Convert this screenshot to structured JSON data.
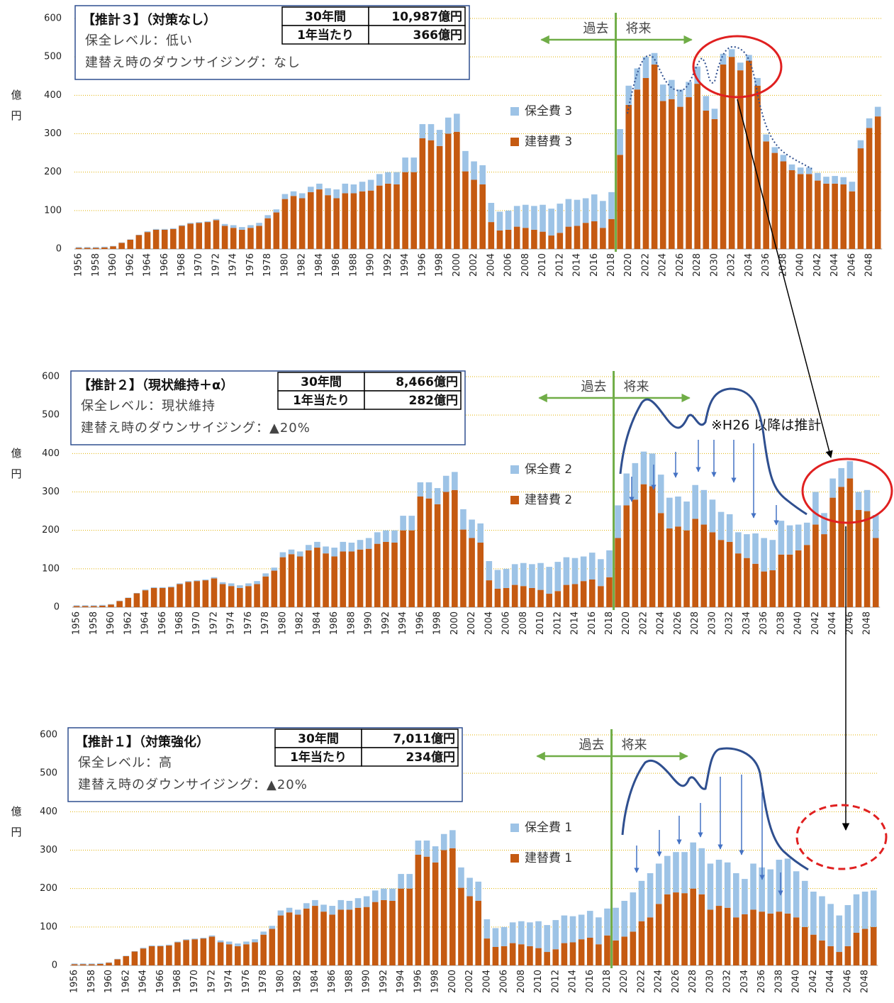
{
  "chart_data": [
    {
      "type": "bar",
      "stacked": true,
      "grid": true,
      "ylabel": "億円",
      "box": {
        "title": "【推計３】（対策なし）",
        "level": "保全レベル：低い",
        "downsizing": "建替え時のダウンサイジング：なし",
        "summary": [
          [
            "30年間",
            "10,987億円"
          ],
          [
            "1年当たり",
            "366億円"
          ]
        ]
      },
      "past_label": "過去",
      "future_label": "将来",
      "ylim": [
        0,
        600
      ],
      "yticks": [
        0,
        100,
        200,
        300,
        400,
        500,
        600
      ],
      "categories": [
        "1956",
        null,
        "1958",
        null,
        "1960",
        null,
        "1962",
        null,
        "1964",
        null,
        "1966",
        null,
        "1968",
        null,
        "1970",
        null,
        "1972",
        null,
        "1974",
        null,
        "1976",
        null,
        "1978",
        null,
        "1980",
        null,
        "1982",
        null,
        "1984",
        null,
        "1986",
        null,
        "1988",
        null,
        "1990",
        null,
        "1992",
        null,
        "1994",
        null,
        "1996",
        null,
        "1998",
        null,
        "2000",
        null,
        "2002",
        null,
        "2004",
        null,
        "2006",
        null,
        "2008",
        null,
        "2010",
        null,
        "2012",
        null,
        "2014",
        null,
        "2016",
        null,
        "2018",
        null,
        "2020",
        null,
        "2022",
        null,
        "2024",
        null,
        "2026",
        null,
        "2028",
        null,
        "2030",
        null,
        "2032",
        null,
        "2034",
        null,
        "2036",
        null,
        "2038",
        null,
        "2040",
        null,
        "2042",
        null,
        "2044",
        null,
        "2046",
        null,
        "2048",
        null
      ],
      "series": [
        {
          "name": "建替費 3",
          "color": "#c55a11",
          "values": [
            3,
            3,
            3,
            4,
            7,
            16,
            24,
            36,
            44,
            50,
            50,
            52,
            60,
            66,
            68,
            70,
            75,
            60,
            55,
            50,
            55,
            60,
            80,
            95,
            130,
            138,
            132,
            148,
            155,
            140,
            132,
            145,
            145,
            150,
            152,
            165,
            170,
            168,
            200,
            200,
            288,
            283,
            268,
            300,
            305,
            202,
            180,
            168,
            70,
            48,
            50,
            58,
            55,
            50,
            45,
            35,
            42,
            58,
            60,
            68,
            72,
            55,
            78,
            245,
            375,
            415,
            445,
            480,
            385,
            390,
            370,
            395,
            430,
            360,
            338,
            480,
            500,
            465,
            490,
            425,
            280,
            250,
            228,
            205,
            195,
            195,
            178,
            170,
            170,
            168,
            150,
            262,
            315,
            345
          ]
        },
        {
          "name": "保全費 3",
          "color": "#9dc3e6",
          "values": [
            2,
            2,
            2,
            2,
            1,
            1,
            1,
            1,
            2,
            2,
            2,
            2,
            2,
            2,
            2,
            2,
            3,
            5,
            7,
            7,
            7,
            8,
            8,
            8,
            13,
            12,
            13,
            14,
            15,
            18,
            23,
            25,
            23,
            25,
            28,
            30,
            30,
            32,
            38,
            38,
            37,
            42,
            42,
            42,
            47,
            53,
            48,
            50,
            50,
            49,
            50,
            54,
            60,
            62,
            70,
            70,
            76,
            72,
            68,
            64,
            70,
            70,
            70,
            67,
            50,
            55,
            55,
            30,
            43,
            50,
            45,
            40,
            45,
            38,
            27,
            28,
            20,
            20,
            15,
            20,
            18,
            15,
            17,
            15,
            17,
            17,
            20,
            18,
            20,
            19,
            25,
            21,
            25,
            25
          ]
        }
      ]
    },
    {
      "type": "bar",
      "stacked": true,
      "grid": true,
      "ylabel": "億円",
      "box": {
        "title": "【推計２】（現状維持＋α）",
        "level": "保全レベル：現状維持",
        "downsizing": "建替え時のダウンサイジング：▲20%",
        "summary": [
          [
            "30年間",
            "8,466億円"
          ],
          [
            "1年当たり",
            "282億円"
          ]
        ]
      },
      "past_label": "過去",
      "future_label": "将来",
      "note": "※H26 以降は推計",
      "ylim": [
        0,
        600
      ],
      "yticks": [
        0,
        100,
        200,
        300,
        400,
        500,
        600
      ],
      "categories": [
        "1956",
        null,
        "1958",
        null,
        "1960",
        null,
        "1962",
        null,
        "1964",
        null,
        "1966",
        null,
        "1968",
        null,
        "1970",
        null,
        "1972",
        null,
        "1974",
        null,
        "1976",
        null,
        "1978",
        null,
        "1980",
        null,
        "1982",
        null,
        "1984",
        null,
        "1986",
        null,
        "1988",
        null,
        "1990",
        null,
        "1992",
        null,
        "1994",
        null,
        "1996",
        null,
        "1998",
        null,
        "2000",
        null,
        "2002",
        null,
        "2004",
        null,
        "2006",
        null,
        "2008",
        null,
        "2010",
        null,
        "2012",
        null,
        "2014",
        null,
        "2016",
        null,
        "2018",
        null,
        "2020",
        null,
        "2022",
        null,
        "2024",
        null,
        "2026",
        null,
        "2028",
        null,
        "2030",
        null,
        "2032",
        null,
        "2034",
        null,
        "2036",
        null,
        "2038",
        null,
        "2040",
        null,
        "2042",
        null,
        "2044",
        null,
        "2046",
        null,
        "2048",
        null
      ],
      "series": [
        {
          "name": "建替費 2",
          "color": "#c55a11",
          "values": [
            3,
            3,
            3,
            4,
            7,
            16,
            24,
            36,
            44,
            50,
            50,
            52,
            60,
            66,
            68,
            70,
            75,
            60,
            55,
            50,
            55,
            60,
            80,
            95,
            130,
            138,
            132,
            148,
            155,
            140,
            132,
            145,
            145,
            150,
            152,
            165,
            170,
            168,
            200,
            200,
            288,
            283,
            268,
            300,
            305,
            202,
            180,
            168,
            70,
            48,
            50,
            58,
            55,
            50,
            45,
            35,
            42,
            58,
            60,
            68,
            72,
            55,
            78,
            180,
            265,
            280,
            320,
            315,
            245,
            205,
            210,
            200,
            230,
            215,
            195,
            175,
            170,
            140,
            128,
            113,
            93,
            96,
            137,
            137,
            148,
            162,
            215,
            190,
            285,
            313,
            335,
            253,
            250,
            180
          ]
        },
        {
          "name": "保全費 2",
          "color": "#9dc3e6",
          "values": [
            2,
            2,
            2,
            2,
            1,
            1,
            1,
            1,
            2,
            2,
            2,
            2,
            2,
            2,
            2,
            2,
            3,
            5,
            7,
            7,
            7,
            8,
            8,
            8,
            13,
            12,
            13,
            14,
            15,
            18,
            23,
            25,
            23,
            25,
            28,
            30,
            30,
            32,
            38,
            38,
            37,
            42,
            42,
            42,
            47,
            53,
            48,
            50,
            50,
            49,
            50,
            54,
            60,
            62,
            70,
            70,
            76,
            72,
            68,
            64,
            70,
            70,
            70,
            85,
            83,
            95,
            85,
            85,
            100,
            80,
            78,
            75,
            88,
            90,
            85,
            73,
            72,
            55,
            62,
            79,
            87,
            79,
            88,
            76,
            67,
            58,
            85,
            55,
            50,
            49,
            45,
            47,
            55,
            60
          ]
        }
      ]
    },
    {
      "type": "bar",
      "stacked": true,
      "grid": true,
      "ylabel": "億円",
      "box": {
        "title": "【推計１】（対策強化）",
        "level": "保全レベル：高",
        "downsizing": "建替え時のダウンサイジング：▲20%",
        "summary": [
          [
            "30年間",
            "7,011億円"
          ],
          [
            "1年当たり",
            "234億円"
          ]
        ]
      },
      "past_label": "過去",
      "future_label": "将来",
      "ylim": [
        0,
        600
      ],
      "yticks": [
        0,
        100,
        200,
        300,
        400,
        500,
        600
      ],
      "categories": [
        "1956",
        null,
        "1958",
        null,
        "1960",
        null,
        "1962",
        null,
        "1964",
        null,
        "1966",
        null,
        "1968",
        null,
        "1970",
        null,
        "1972",
        null,
        "1974",
        null,
        "1976",
        null,
        "1978",
        null,
        "1980",
        null,
        "1982",
        null,
        "1984",
        null,
        "1986",
        null,
        "1988",
        null,
        "1990",
        null,
        "1992",
        null,
        "1994",
        null,
        "1996",
        null,
        "1998",
        null,
        "2000",
        null,
        "2002",
        null,
        "2004",
        null,
        "2006",
        null,
        "2008",
        null,
        "2010",
        null,
        "2012",
        null,
        "2014",
        null,
        "2016",
        null,
        "2018",
        null,
        "2020",
        null,
        "2022",
        null,
        "2024",
        null,
        "2026",
        null,
        "2028",
        null,
        "2030",
        null,
        "2032",
        null,
        "2034",
        null,
        "2036",
        null,
        "2038",
        null,
        "2040",
        null,
        "2042",
        null,
        "2044",
        null,
        "2046",
        null,
        "2048",
        null
      ],
      "series": [
        {
          "name": "建替費 1",
          "color": "#c55a11",
          "values": [
            3,
            3,
            3,
            4,
            7,
            16,
            24,
            36,
            44,
            50,
            50,
            52,
            60,
            66,
            68,
            70,
            75,
            60,
            55,
            50,
            55,
            60,
            80,
            95,
            130,
            138,
            132,
            148,
            155,
            140,
            132,
            145,
            145,
            150,
            152,
            165,
            170,
            168,
            200,
            200,
            288,
            283,
            268,
            300,
            305,
            202,
            180,
            168,
            70,
            48,
            50,
            58,
            55,
            50,
            45,
            35,
            42,
            58,
            60,
            68,
            72,
            55,
            78,
            65,
            75,
            88,
            115,
            125,
            160,
            185,
            190,
            188,
            200,
            185,
            145,
            155,
            150,
            125,
            133,
            145,
            140,
            135,
            140,
            135,
            125,
            100,
            80,
            65,
            50,
            35,
            50,
            85,
            95,
            100
          ]
        },
        {
          "name": "保全費 1",
          "color": "#9dc3e6",
          "values": [
            2,
            2,
            2,
            2,
            1,
            1,
            1,
            1,
            2,
            2,
            2,
            2,
            2,
            2,
            2,
            2,
            3,
            5,
            7,
            7,
            7,
            8,
            8,
            8,
            13,
            12,
            13,
            14,
            15,
            18,
            23,
            25,
            23,
            25,
            28,
            30,
            30,
            32,
            38,
            38,
            37,
            42,
            42,
            42,
            47,
            53,
            48,
            50,
            50,
            49,
            50,
            54,
            60,
            62,
            70,
            70,
            76,
            72,
            68,
            64,
            70,
            70,
            70,
            85,
            93,
            102,
            105,
            115,
            105,
            100,
            105,
            107,
            120,
            120,
            120,
            120,
            118,
            115,
            92,
            120,
            115,
            115,
            135,
            143,
            120,
            120,
            112,
            115,
            110,
            95,
            107,
            100,
            97,
            95
          ]
        }
      ]
    }
  ]
}
